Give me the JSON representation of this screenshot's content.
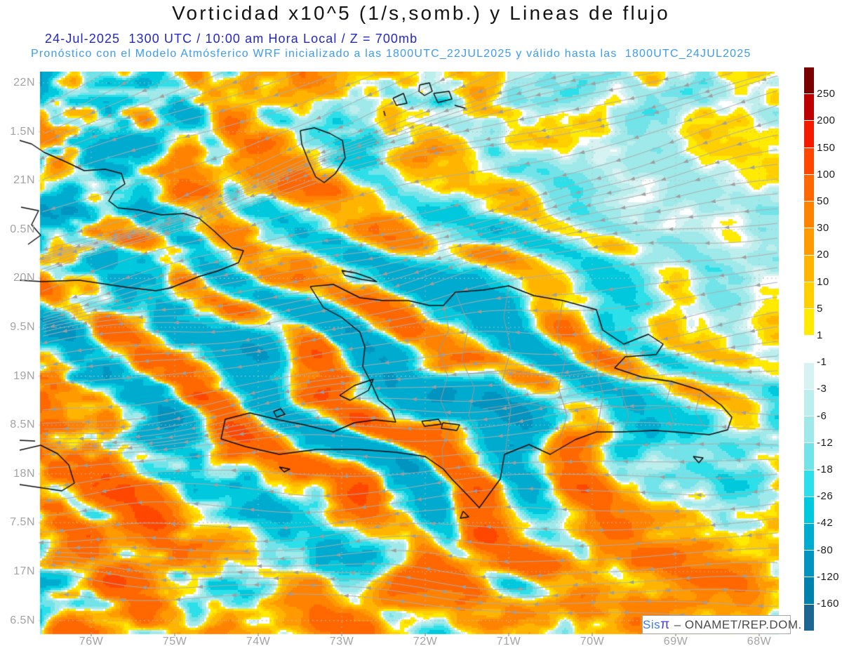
{
  "header": {
    "title": "Vorticidad x10^5 (1/s,somb.) y Lineas de flujo",
    "subtitle_datetime": "24-Jul-2025  1300 UTC / 10:00 am Hora Local / Z = 700mb",
    "subtitle_model": "Pronóstico con el Modelo Atmósferico WRF inicializado a las 1800UTC_22JUL2025 y válido hasta las  1800UTC_24JUL2025",
    "colors": {
      "title": "#141414",
      "subtitle_datetime": "#2326c9",
      "subtitle_model": "#3d9bef"
    }
  },
  "watermark": {
    "brand": "Sis",
    "pi": "π",
    "rest": "– ONAMET/REP.DOM."
  },
  "axes": {
    "lat_labels": [
      "22N",
      "1.5N",
      "21N",
      "0.5N",
      "20N",
      "9.5N",
      "19N",
      "8.5N",
      "18N",
      "7.5N",
      "17N",
      "6.5N"
    ],
    "lon_labels": [
      "76W",
      "75W",
      "74W",
      "73W",
      "72W",
      "71W",
      "70W",
      "69W",
      "68W"
    ],
    "label_color": "#a3a3a3"
  },
  "colorbar": {
    "tick_labels": [
      "250",
      "200",
      "150",
      "100",
      "50",
      "30",
      "20",
      "10",
      "5",
      "1",
      "-1",
      "-3",
      "-6",
      "-12",
      "-18",
      "-26",
      "-42",
      "-80",
      "-120",
      "-160"
    ],
    "segment_colors": [
      "#7a0000",
      "#bd0000",
      "#f31b00",
      "#ff4700",
      "#ff6700",
      "#ff8200",
      "#ff9b00",
      "#ffb500",
      "#ffcf00",
      "#ffea00",
      "#ffffff",
      "#d7f2f2",
      "#bceeee",
      "#9fe9ea",
      "#72e3e8",
      "#2cdfe8",
      "#00c8dd",
      "#00abd0",
      "#0094c0",
      "#0081ad",
      "#1b6792"
    ]
  },
  "chart_data": {
    "type": "heatmap",
    "title": "Vorticidad x10^5 (1/s,somb.) y Lineas de flujo",
    "field": "relative vorticity (shaded) with streamlines overlay",
    "units": "x10^5 1/s",
    "level": "700mb",
    "valid_time": "24-Jul-2025 1300 UTC / 10:00 am Hora Local",
    "model": "WRF",
    "initialized": "1800UTC_22JUL2025",
    "valid_until": "1800UTC_24JUL2025",
    "x_axis": {
      "tick_labels": [
        "76W",
        "75W",
        "74W",
        "73W",
        "72W",
        "71W",
        "70W",
        "69W",
        "68W"
      ],
      "range_deg_west": [
        76.6,
        67.8
      ]
    },
    "y_axis": {
      "tick_labels_displayed": [
        "22N",
        "1.5N",
        "21N",
        "0.5N",
        "20N",
        "9.5N",
        "19N",
        "8.5N",
        "18N",
        "7.5N",
        "17N",
        "6.5N"
      ],
      "range_deg_north": [
        16.4,
        22.1
      ]
    },
    "shading_boundaries": [
      250,
      200,
      150,
      100,
      50,
      30,
      20,
      10,
      5,
      1,
      -1,
      -3,
      -6,
      -12,
      -18,
      -26,
      -42,
      -80,
      -120,
      -160
    ],
    "shading_colors": [
      "#7a0000",
      "#bd0000",
      "#f31b00",
      "#ff4700",
      "#ff6700",
      "#ff8200",
      "#ff9b00",
      "#ffb500",
      "#ffcf00",
      "#ffea00",
      "#ffffff",
      "#d7f2f2",
      "#bceeee",
      "#9fe9ea",
      "#72e3e8",
      "#2cdfe8",
      "#00c8dd",
      "#00abd0",
      "#0094c0",
      "#0081ad",
      "#1b6792"
    ],
    "legend_position": "right vertical colorbar",
    "grid": "dotted gray gridlines every 0.5 deg latitude and 1 deg longitude",
    "flow": "easterly streamlines right-to-left, tilting southwestward in the northwest quadrant",
    "streamline_color": "#adadad",
    "coastline_color": "#0a0a0a",
    "province_border_color": "#999999",
    "geography_shown": [
      "eastern Cuba",
      "Hispaniola",
      "Jamaica (east tip)",
      "Tortue",
      "Gonave",
      "Turks and Caicos",
      "Great Inagua",
      "Saona",
      "Beata"
    ]
  }
}
